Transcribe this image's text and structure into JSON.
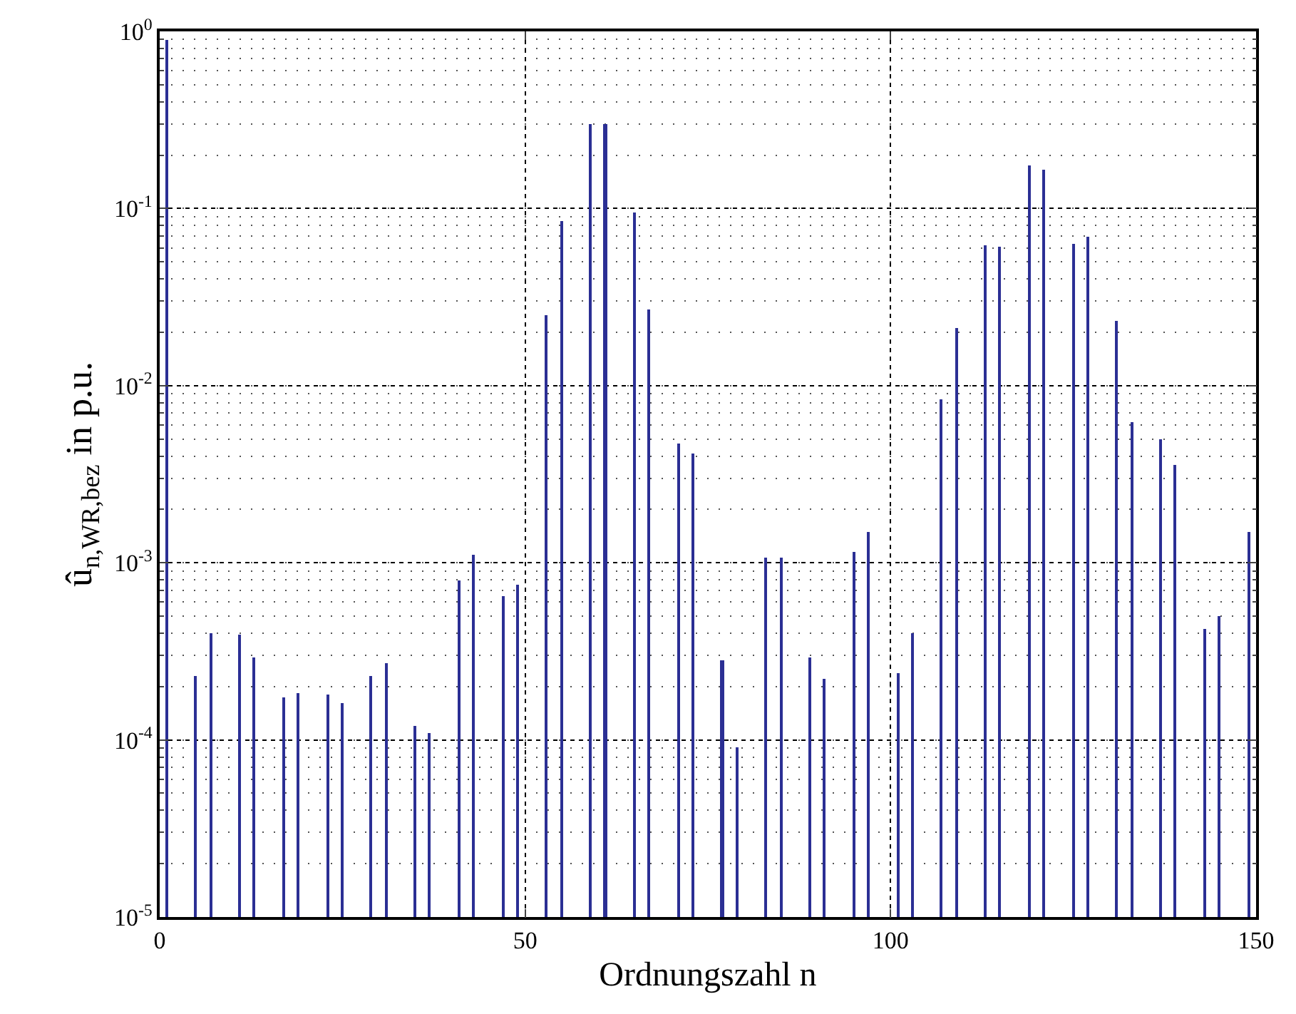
{
  "chart_data": {
    "type": "bar",
    "xlabel": "Ordnungszahl n",
    "ylabel": "û$_{n,WR,bez}$ in p.u.",
    "x": [
      1,
      5,
      7,
      11,
      13,
      17,
      19,
      23,
      25,
      29,
      31,
      35,
      37,
      41,
      43,
      47,
      49,
      53,
      55,
      59,
      61,
      65,
      67,
      71,
      73,
      77,
      79,
      83,
      85,
      89,
      91,
      95,
      97,
      101,
      103,
      107,
      109,
      113,
      115,
      119,
      121,
      125,
      127,
      131,
      133,
      137,
      139,
      143,
      145,
      149
    ],
    "series": [
      {
        "color": "#2b2f94",
        "values": [
          0.9,
          0.00023,
          0.0004,
          0.00039,
          0.00029,
          0.000175,
          0.000185,
          0.00018,
          0.00016,
          0.00023,
          0.00027,
          0.00012,
          0.00011,
          0.0008,
          0.0011,
          0.00065,
          0.00075,
          0.025,
          0.085,
          0.3,
          0.3,
          0.095,
          0.027,
          0.0047,
          0.0041,
          0.00028,
          9e-05,
          0.00107,
          0.00106,
          0.00029,
          0.00022,
          0.00115,
          0.0015,
          0.00024,
          0.0004,
          0.0083,
          0.021,
          0.062,
          0.061,
          0.175,
          0.165,
          0.063,
          0.069,
          0.023,
          0.0062,
          0.005,
          0.0036,
          0.00042,
          0.0005,
          0.0015
        ]
      }
    ],
    "log": "y",
    "xlim": [
      0,
      150
    ],
    "xticks": [
      0,
      50,
      100,
      150
    ],
    "ylim": [
      1e-05,
      1
    ],
    "yticks": [
      {
        "value": 1e-05,
        "label": "10$^{-5}$"
      },
      {
        "value": 0.0001,
        "label": "10$^{-4}$"
      },
      {
        "value": 0.001,
        "label": "10$^{-3}$"
      },
      {
        "value": 0.01,
        "label": "10$^{-2}$"
      },
      {
        "value": 0.1,
        "label": "10$^{-1}$"
      },
      {
        "value": 1,
        "label": "10$^{0}$"
      }
    ],
    "grid": true
  }
}
